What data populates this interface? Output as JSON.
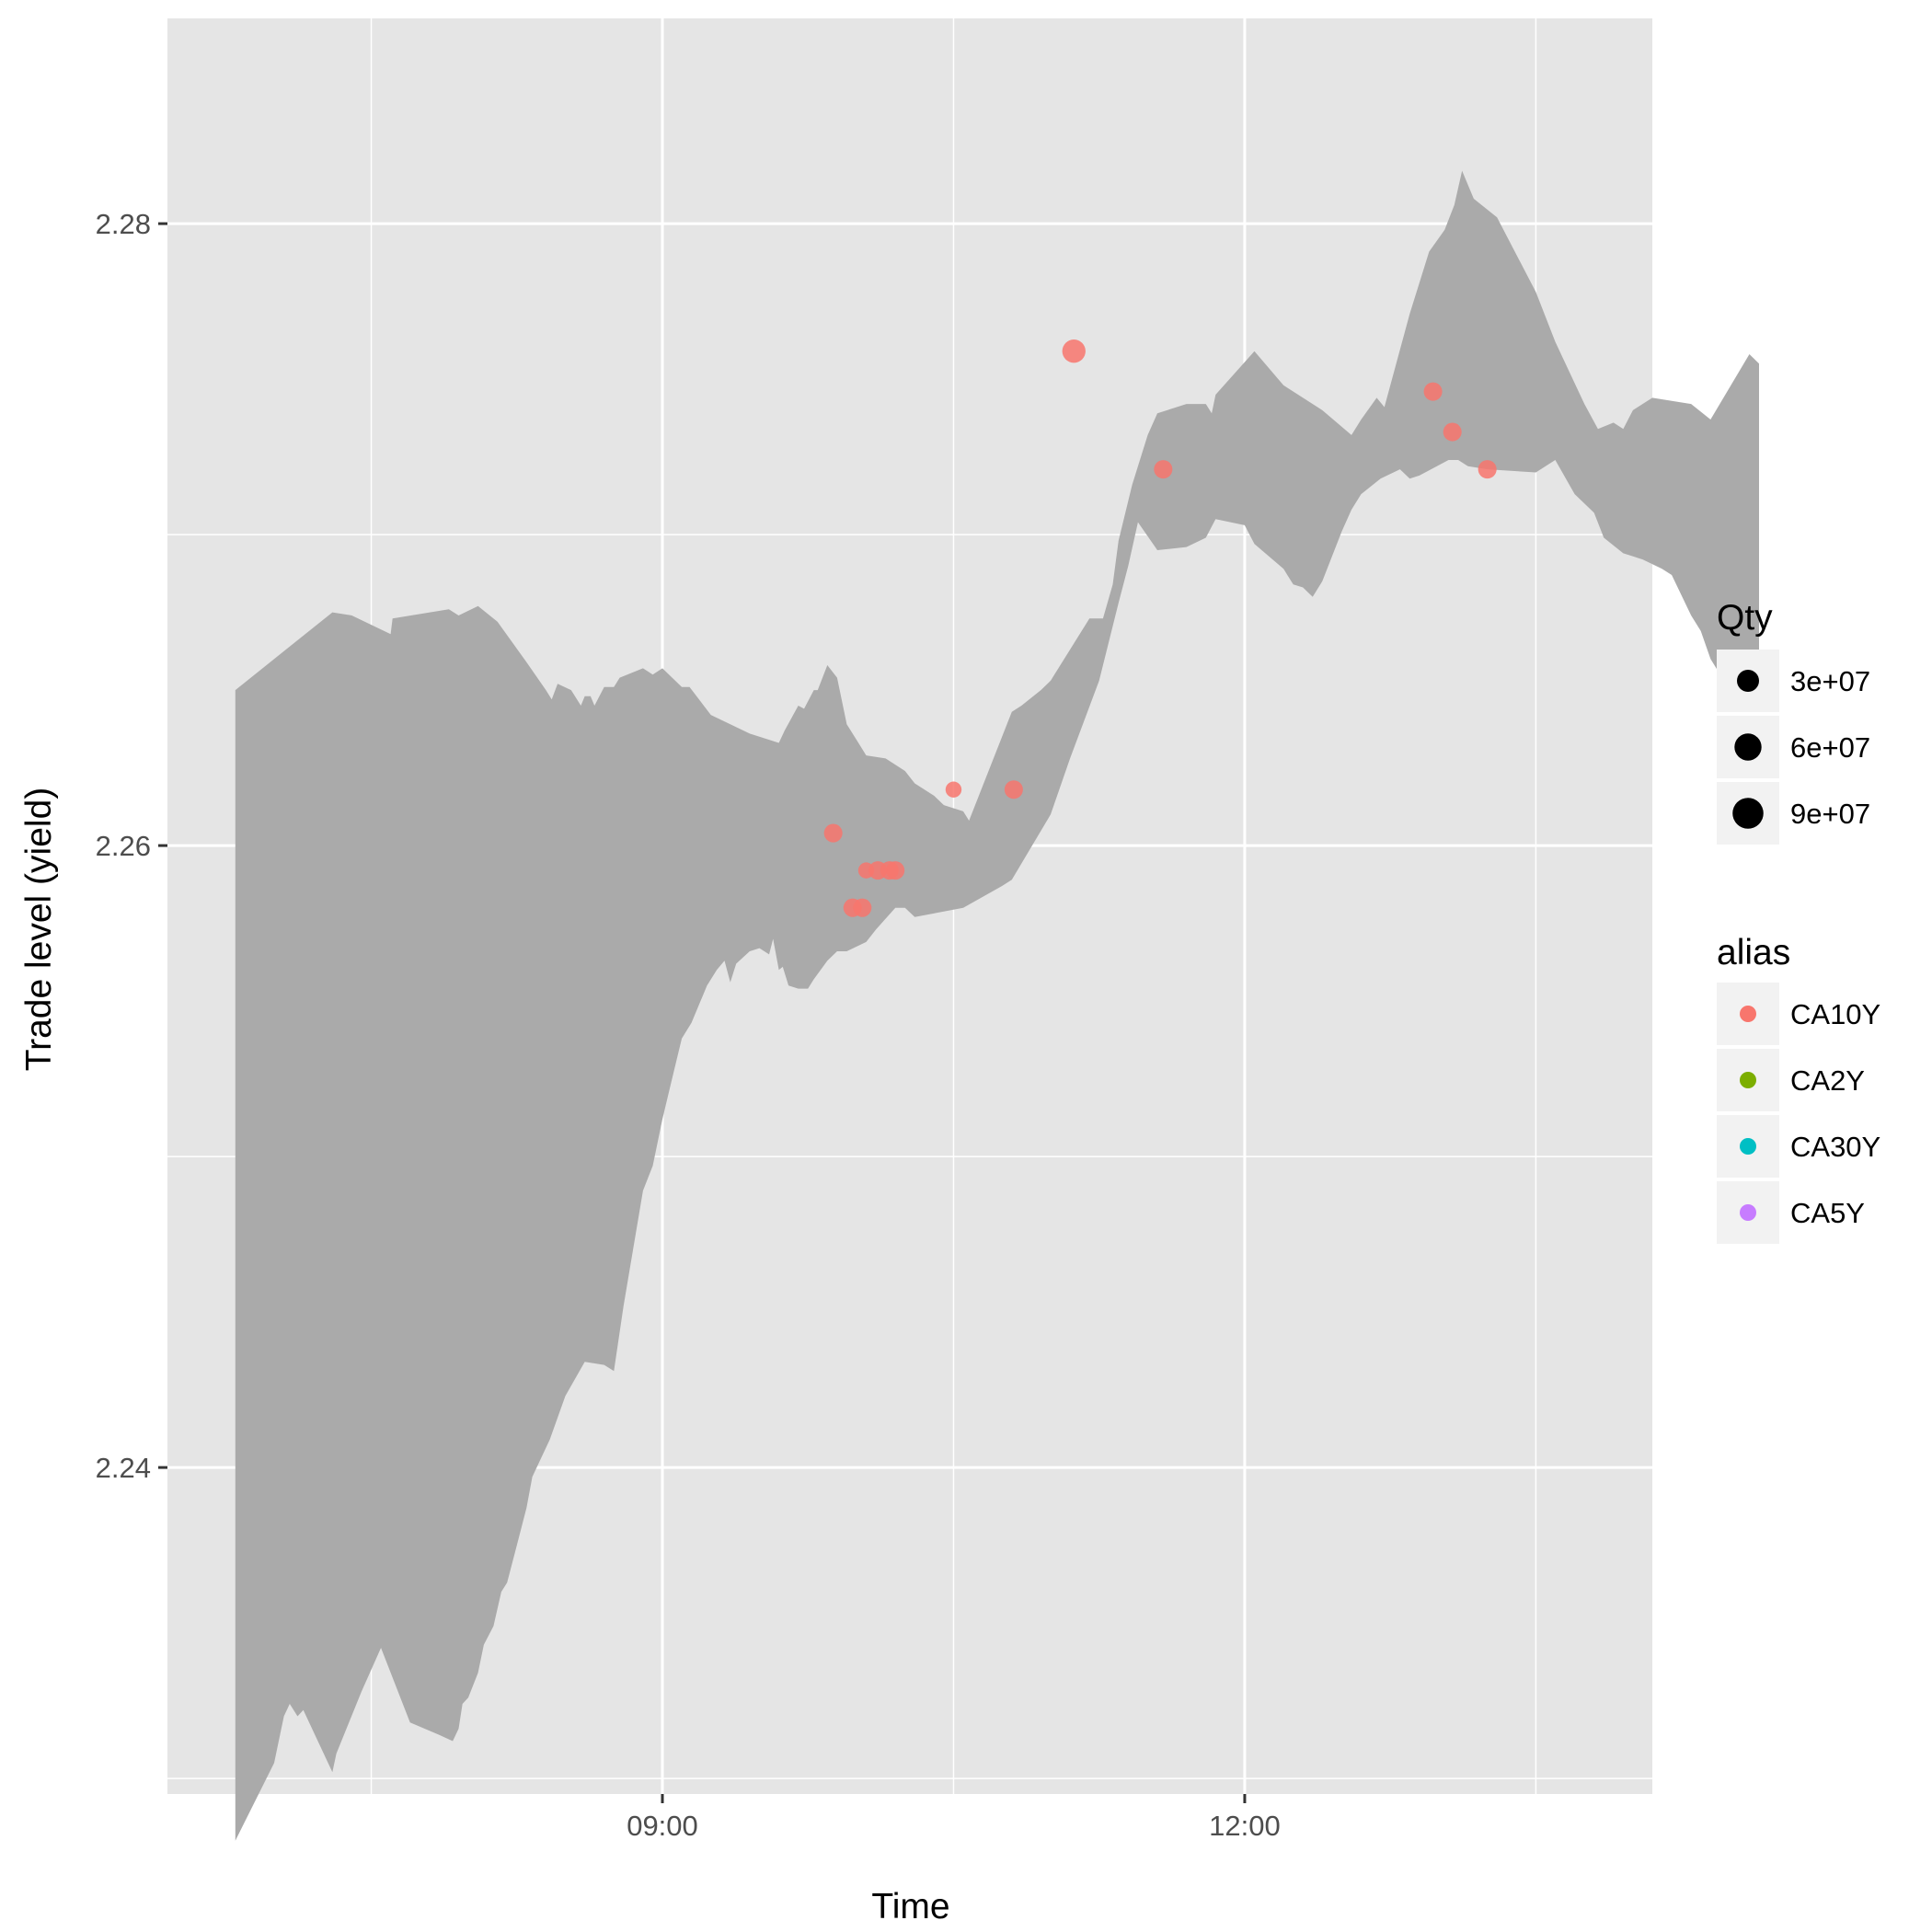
{
  "chart_data": {
    "type": "scatter",
    "title": "",
    "xlabel": "Time",
    "ylabel": "Trade level (yield)",
    "x_unit": "hours",
    "xlim": [
      6.45,
      14.1
    ],
    "ylim": [
      2.2295,
      2.2866
    ],
    "x_ticks": [
      {
        "value": 9,
        "label": "09:00"
      },
      {
        "value": 12,
        "label": "12:00"
      }
    ],
    "x_minor_ticks": [
      7.5,
      10.5,
      13.5
    ],
    "y_ticks": [
      {
        "value": 2.24,
        "label": "2.24"
      },
      {
        "value": 2.26,
        "label": "2.26"
      },
      {
        "value": 2.28,
        "label": "2.28"
      }
    ],
    "y_minor_ticks": [
      2.23,
      2.25,
      2.27
    ],
    "grid": true,
    "band": {
      "color": "#aaaaaa",
      "upper": [
        [
          6.8,
          2.265
        ],
        [
          7.1,
          2.2665
        ],
        [
          7.3,
          2.2675
        ],
        [
          7.4,
          2.2674
        ],
        [
          7.6,
          2.2668
        ],
        [
          7.61,
          2.2673
        ],
        [
          7.9,
          2.2676
        ],
        [
          7.95,
          2.2674
        ],
        [
          8.05,
          2.2677
        ],
        [
          8.15,
          2.2672
        ],
        [
          8.3,
          2.2659
        ],
        [
          8.4,
          2.265
        ],
        [
          8.43,
          2.2647
        ],
        [
          8.46,
          2.2652
        ],
        [
          8.53,
          2.265
        ],
        [
          8.58,
          2.2645
        ],
        [
          8.6,
          2.2648
        ],
        [
          8.63,
          2.2648
        ],
        [
          8.65,
          2.2645
        ],
        [
          8.7,
          2.2651
        ],
        [
          8.75,
          2.2651
        ],
        [
          8.78,
          2.2654
        ],
        [
          8.9,
          2.2657
        ],
        [
          8.95,
          2.2655
        ],
        [
          9.0,
          2.2657
        ],
        [
          9.1,
          2.2651
        ],
        [
          9.14,
          2.2651
        ],
        [
          9.25,
          2.2642
        ],
        [
          9.45,
          2.2636
        ],
        [
          9.6,
          2.2633
        ],
        [
          9.63,
          2.2637
        ],
        [
          9.7,
          2.2645
        ],
        [
          9.73,
          2.2644
        ],
        [
          9.78,
          2.265
        ],
        [
          9.8,
          2.265
        ],
        [
          9.85,
          2.2658
        ],
        [
          9.9,
          2.2654
        ],
        [
          9.95,
          2.2639
        ],
        [
          10.02,
          2.2632
        ],
        [
          10.05,
          2.2629
        ],
        [
          10.15,
          2.2628
        ],
        [
          10.25,
          2.2624
        ],
        [
          10.3,
          2.262
        ],
        [
          10.4,
          2.2616
        ],
        [
          10.45,
          2.2613
        ],
        [
          10.55,
          2.2611
        ],
        [
          10.58,
          2.2608
        ],
        [
          10.8,
          2.2643
        ],
        [
          10.85,
          2.2645
        ],
        [
          10.95,
          2.265
        ],
        [
          11.0,
          2.2653
        ],
        [
          11.2,
          2.2673
        ],
        [
          11.27,
          2.2673
        ],
        [
          11.32,
          2.2684
        ],
        [
          11.35,
          2.2698
        ],
        [
          11.42,
          2.2716
        ],
        [
          11.5,
          2.2732
        ],
        [
          11.55,
          2.2739
        ],
        [
          11.7,
          2.2742
        ],
        [
          11.8,
          2.2742
        ],
        [
          11.83,
          2.2739
        ],
        [
          11.85,
          2.2745
        ],
        [
          12.05,
          2.2759
        ],
        [
          12.2,
          2.2748
        ],
        [
          12.4,
          2.274
        ],
        [
          12.55,
          2.2732
        ],
        [
          12.6,
          2.2737
        ],
        [
          12.68,
          2.2744
        ],
        [
          12.72,
          2.2741
        ],
        [
          12.85,
          2.2771
        ],
        [
          12.95,
          2.2791
        ],
        [
          13.03,
          2.2798
        ],
        [
          13.08,
          2.2806
        ],
        [
          13.12,
          2.2817
        ],
        [
          13.18,
          2.2808
        ],
        [
          13.3,
          2.2802
        ],
        [
          13.5,
          2.2778
        ],
        [
          13.6,
          2.2762
        ],
        [
          13.75,
          2.2742
        ],
        [
          13.82,
          2.2734
        ],
        [
          13.9,
          2.2736
        ],
        [
          13.95,
          2.2734
        ],
        [
          14.0,
          2.274
        ],
        [
          14.1,
          2.2744
        ],
        [
          14.3,
          2.2742
        ],
        [
          14.4,
          2.2737
        ],
        [
          14.6,
          2.2758
        ],
        [
          14.65,
          2.2755
        ]
      ],
      "lower": [
        [
          6.8,
          2.228
        ],
        [
          7.0,
          2.2305
        ],
        [
          7.05,
          2.232
        ],
        [
          7.08,
          2.2324
        ],
        [
          7.12,
          2.232
        ],
        [
          7.15,
          2.2322
        ],
        [
          7.3,
          2.2302
        ],
        [
          7.32,
          2.2308
        ],
        [
          7.45,
          2.2328
        ],
        [
          7.55,
          2.2342
        ],
        [
          7.7,
          2.2318
        ],
        [
          7.85,
          2.2314
        ],
        [
          7.92,
          2.2312
        ],
        [
          7.95,
          2.2316
        ],
        [
          7.97,
          2.2324
        ],
        [
          8.0,
          2.2326
        ],
        [
          8.05,
          2.2334
        ],
        [
          8.08,
          2.2343
        ],
        [
          8.13,
          2.2349
        ],
        [
          8.17,
          2.236
        ],
        [
          8.2,
          2.2363
        ],
        [
          8.25,
          2.2375
        ],
        [
          8.3,
          2.2387
        ],
        [
          8.33,
          2.2397
        ],
        [
          8.42,
          2.2409
        ],
        [
          8.5,
          2.2423
        ],
        [
          8.6,
          2.2434
        ],
        [
          8.7,
          2.2433
        ],
        [
          8.75,
          2.2431
        ],
        [
          8.8,
          2.2452
        ],
        [
          8.9,
          2.2489
        ],
        [
          8.95,
          2.2497
        ],
        [
          9.0,
          2.2512
        ],
        [
          9.05,
          2.2525
        ],
        [
          9.1,
          2.2538
        ],
        [
          9.15,
          2.2543
        ],
        [
          9.23,
          2.2555
        ],
        [
          9.28,
          2.256
        ],
        [
          9.32,
          2.2563
        ],
        [
          9.35,
          2.2556
        ],
        [
          9.38,
          2.2562
        ],
        [
          9.45,
          2.2566
        ],
        [
          9.5,
          2.2567
        ],
        [
          9.55,
          2.2565
        ],
        [
          9.57,
          2.257
        ],
        [
          9.6,
          2.256
        ],
        [
          9.62,
          2.2561
        ],
        [
          9.65,
          2.2555
        ],
        [
          9.7,
          2.2554
        ],
        [
          9.75,
          2.2554
        ],
        [
          9.78,
          2.2557
        ],
        [
          9.85,
          2.2563
        ],
        [
          9.9,
          2.2566
        ],
        [
          9.95,
          2.2566
        ],
        [
          10.05,
          2.2569
        ],
        [
          10.1,
          2.2573
        ],
        [
          10.2,
          2.258
        ],
        [
          10.25,
          2.258
        ],
        [
          10.3,
          2.2577
        ],
        [
          10.55,
          2.258
        ],
        [
          10.75,
          2.2587
        ],
        [
          10.8,
          2.2589
        ],
        [
          11.0,
          2.261
        ],
        [
          11.1,
          2.2628
        ],
        [
          11.25,
          2.2653
        ],
        [
          11.35,
          2.2678
        ],
        [
          11.4,
          2.269
        ],
        [
          11.45,
          2.2704
        ],
        [
          11.55,
          2.2695
        ],
        [
          11.7,
          2.2696
        ],
        [
          11.8,
          2.2699
        ],
        [
          11.85,
          2.2705
        ],
        [
          12.0,
          2.2703
        ],
        [
          12.05,
          2.2697
        ],
        [
          12.2,
          2.2689
        ],
        [
          12.25,
          2.2684
        ],
        [
          12.3,
          2.2683
        ],
        [
          12.35,
          2.268
        ],
        [
          12.4,
          2.2685
        ],
        [
          12.5,
          2.2701
        ],
        [
          12.55,
          2.2708
        ],
        [
          12.6,
          2.2713
        ],
        [
          12.7,
          2.2718
        ],
        [
          12.8,
          2.2721
        ],
        [
          12.85,
          2.2718
        ],
        [
          12.9,
          2.2719
        ],
        [
          13.05,
          2.2724
        ],
        [
          13.1,
          2.2724
        ],
        [
          13.15,
          2.2722
        ],
        [
          13.25,
          2.2721
        ],
        [
          13.5,
          2.272
        ],
        [
          13.6,
          2.2724
        ],
        [
          13.7,
          2.2713
        ],
        [
          13.8,
          2.2707
        ],
        [
          13.85,
          2.2699
        ],
        [
          13.95,
          2.2694
        ],
        [
          14.05,
          2.2692
        ],
        [
          14.15,
          2.2689
        ],
        [
          14.2,
          2.2687
        ],
        [
          14.3,
          2.2674
        ],
        [
          14.35,
          2.2669
        ],
        [
          14.4,
          2.266
        ],
        [
          14.45,
          2.2655
        ],
        [
          14.55,
          2.2652
        ],
        [
          14.65,
          2.265
        ]
      ]
    },
    "points": [
      {
        "alias": "CA10Y",
        "x": 9.88,
        "y": 2.2604,
        "qty": 20000000
      },
      {
        "alias": "CA10Y",
        "x": 9.98,
        "y": 2.258,
        "qty": 20000000
      },
      {
        "alias": "CA10Y",
        "x": 10.03,
        "y": 2.258,
        "qty": 20000000
      },
      {
        "alias": "CA10Y",
        "x": 10.05,
        "y": 2.2592,
        "qty": 10000000
      },
      {
        "alias": "CA10Y",
        "x": 10.11,
        "y": 2.2592,
        "qty": 20000000
      },
      {
        "alias": "CA10Y",
        "x": 10.17,
        "y": 2.2592,
        "qty": 20000000
      },
      {
        "alias": "CA10Y",
        "x": 10.2,
        "y": 2.2592,
        "qty": 20000000
      },
      {
        "alias": "CA10Y",
        "x": 10.5,
        "y": 2.2618,
        "qty": 10000000
      },
      {
        "alias": "CA10Y",
        "x": 10.81,
        "y": 2.2618,
        "qty": 20000000
      },
      {
        "alias": "CA10Y",
        "x": 11.12,
        "y": 2.2759,
        "qty": 50000000
      },
      {
        "alias": "CA10Y",
        "x": 11.58,
        "y": 2.2721,
        "qty": 20000000
      },
      {
        "alias": "CA10Y",
        "x": 12.97,
        "y": 2.2746,
        "qty": 20000000
      },
      {
        "alias": "CA10Y",
        "x": 13.07,
        "y": 2.2733,
        "qty": 20000000
      },
      {
        "alias": "CA10Y",
        "x": 13.25,
        "y": 2.2721,
        "qty": 20000000
      }
    ],
    "legend": {
      "position": "right",
      "size": {
        "title": "Qty",
        "entries": [
          {
            "label": "3e+07",
            "qty": 30000000
          },
          {
            "label": "6e+07",
            "qty": 60000000
          },
          {
            "label": "9e+07",
            "qty": 90000000
          }
        ]
      },
      "color": {
        "title": "alias",
        "entries": [
          {
            "label": "CA10Y",
            "color": "#F8766D"
          },
          {
            "label": "CA2Y",
            "color": "#7CAE00"
          },
          {
            "label": "CA30Y",
            "color": "#00BFC4"
          },
          {
            "label": "CA5Y",
            "color": "#C77CFF"
          }
        ]
      }
    },
    "colors": {
      "panel": "#e5e5e5",
      "grid": "#ffffff",
      "band": "#aaaaaa",
      "legend_key": "#f2f2f2"
    }
  }
}
